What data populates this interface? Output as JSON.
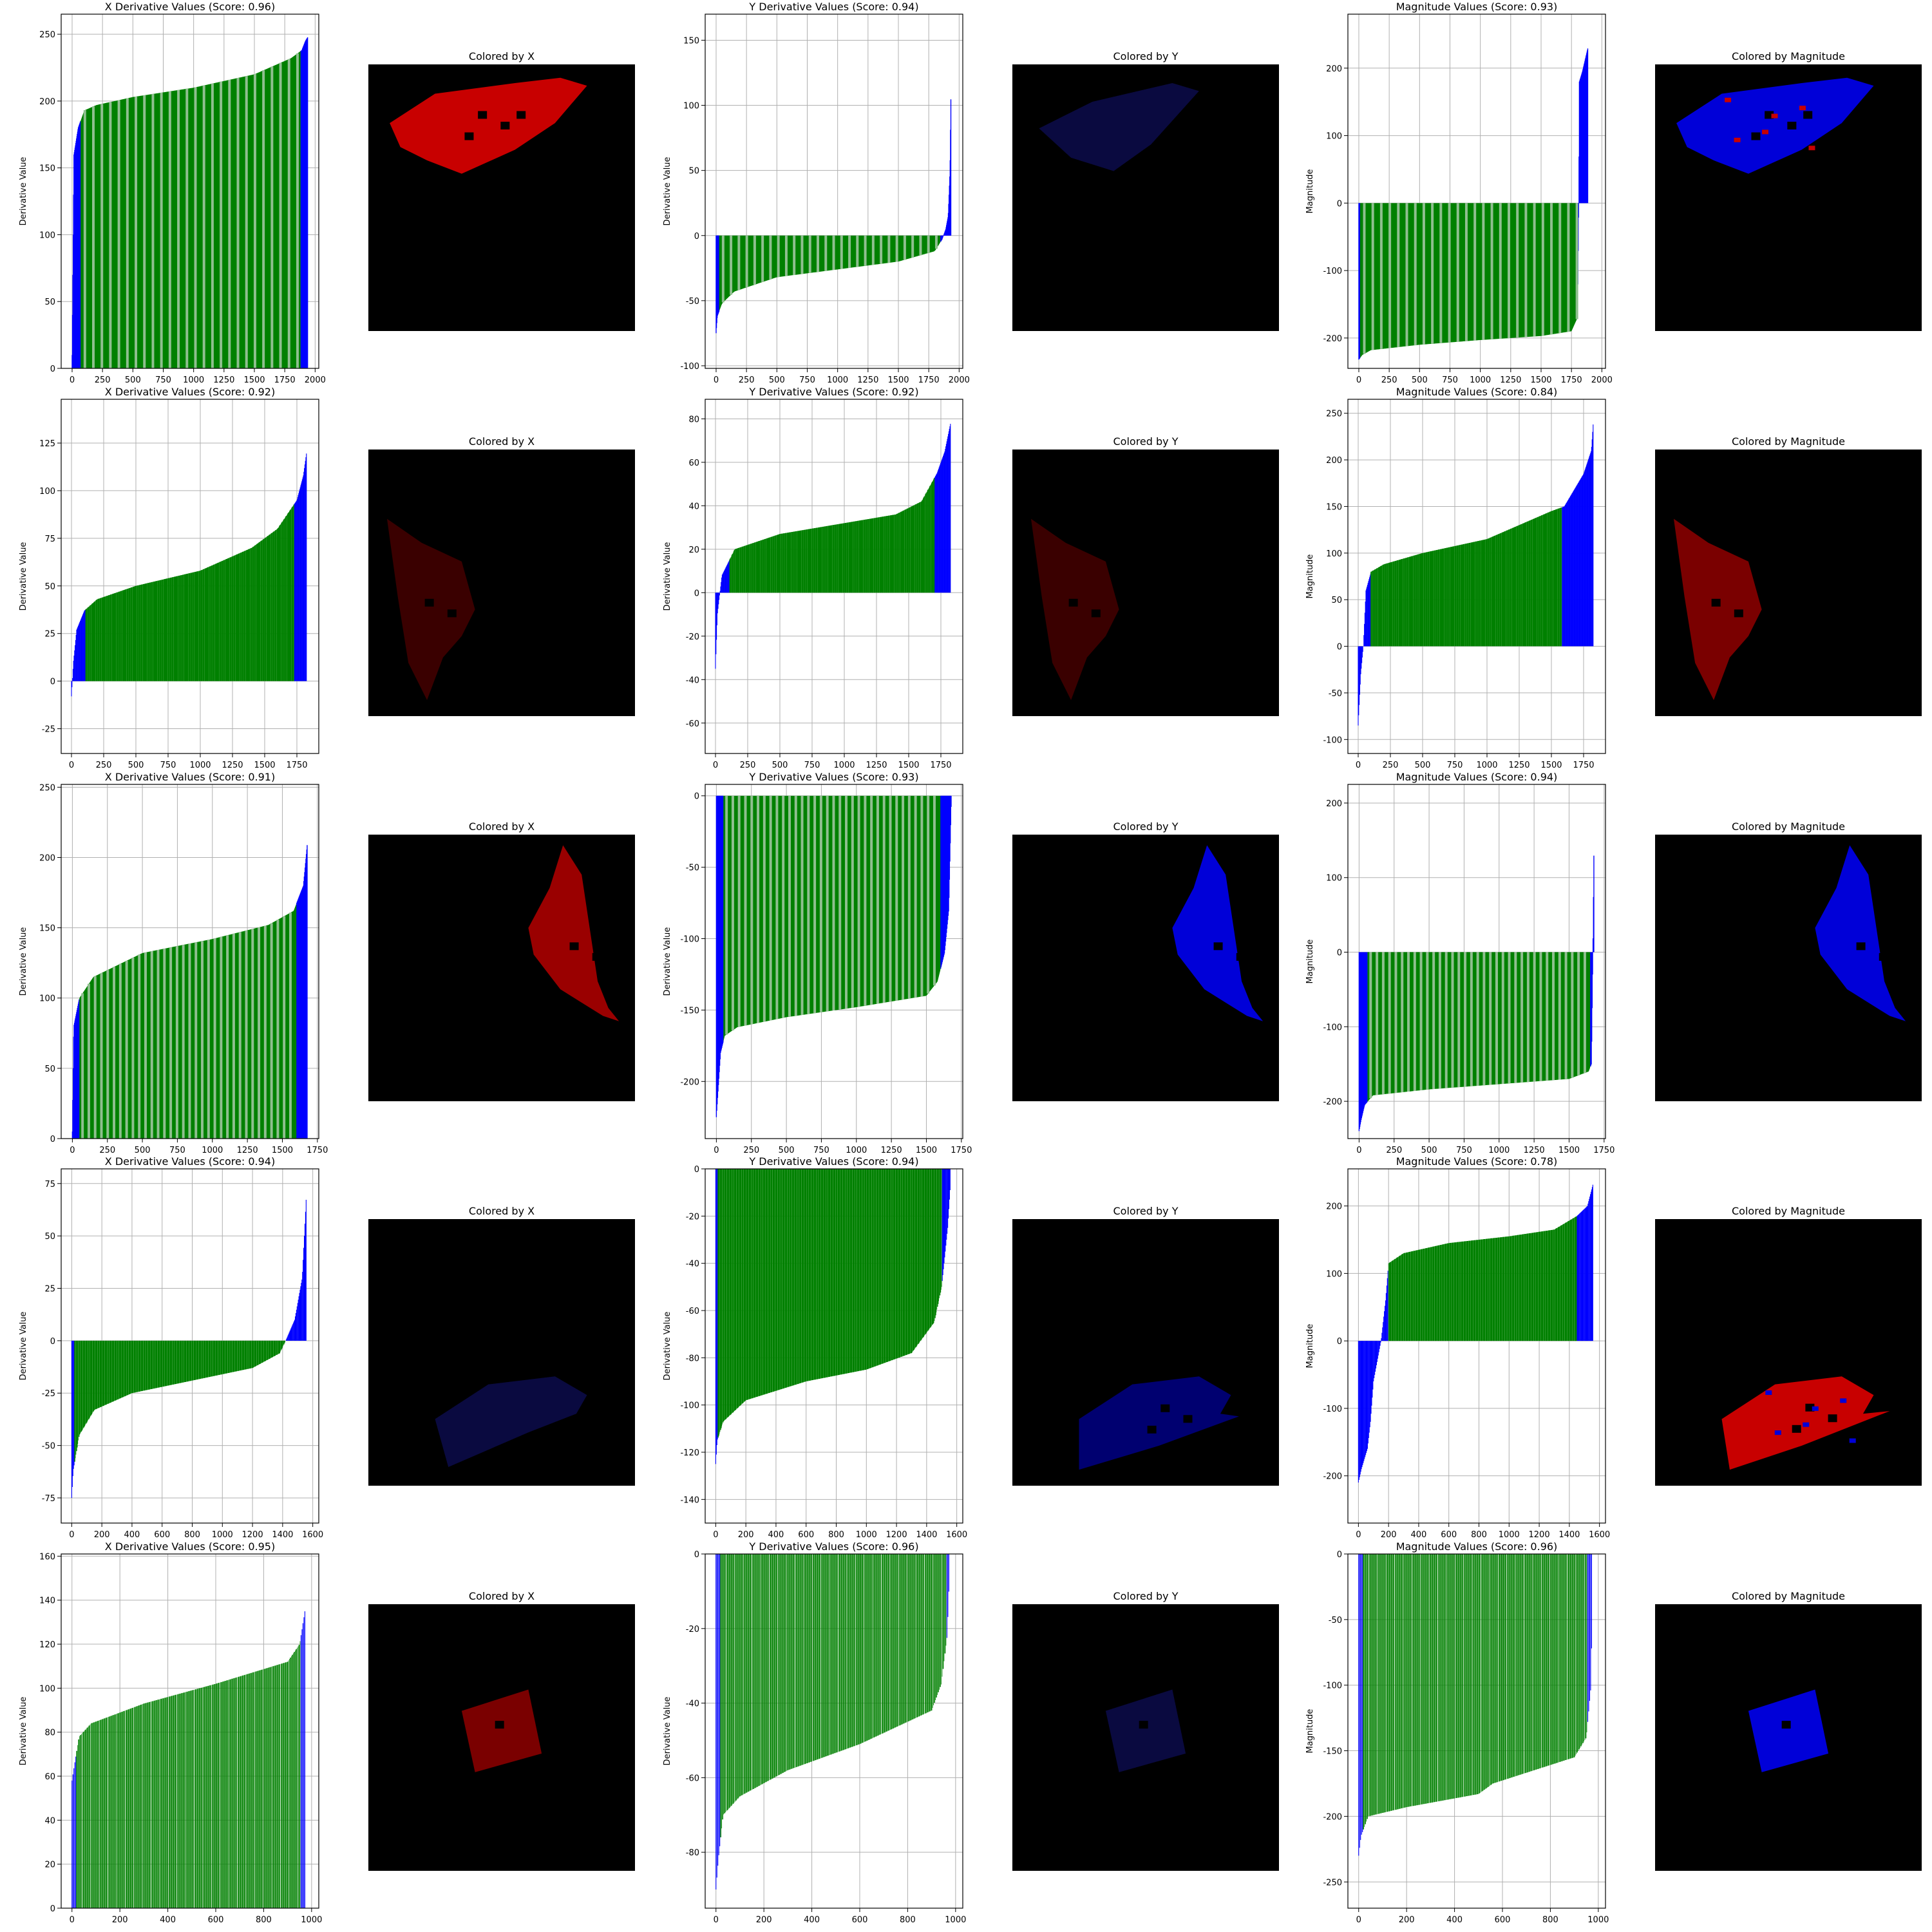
{
  "figure": {
    "colors": {
      "core": "#008000",
      "tail": "#0000ff",
      "axis": "#000000",
      "grid": "#b0b0b0",
      "map_bg": "#000000"
    },
    "image_title_x": "Colored by X",
    "image_title_y": "Colored by Y",
    "image_title_magnitude": "Colored by Magnitude"
  },
  "chart_data": [
    {
      "type": "bar",
      "row": 1,
      "title": "X Derivative Values (Score: 0.96)",
      "xlabel": "",
      "ylabel": "Derivative Value",
      "n": 1940,
      "xlim": [
        -90,
        2030
      ],
      "ylim": [
        0,
        265
      ],
      "xticks": [
        0,
        250,
        500,
        750,
        1000,
        1250,
        1500,
        1750,
        2000
      ],
      "yticks": [
        0,
        50,
        100,
        150,
        200,
        250
      ],
      "curve": [
        [
          0,
          10
        ],
        [
          15,
          160
        ],
        [
          50,
          180
        ],
        [
          100,
          193
        ],
        [
          200,
          197
        ],
        [
          500,
          203
        ],
        [
          1000,
          210
        ],
        [
          1500,
          220
        ],
        [
          1800,
          232
        ],
        [
          1890,
          238
        ],
        [
          1920,
          245
        ],
        [
          1940,
          248
        ]
      ],
      "core_range": [
        70,
        1880
      ],
      "mode": "dense",
      "bar_step": 70
    },
    {
      "type": "bar",
      "row": 1,
      "title": "Y Derivative Values (Score: 0.94)",
      "xlabel": "",
      "ylabel": "Derivative Value",
      "n": 1935,
      "xlim": [
        -90,
        2030
      ],
      "ylim": [
        -102,
        170
      ],
      "xticks": [
        0,
        250,
        500,
        750,
        1000,
        1250,
        1500,
        1750,
        2000
      ],
      "yticks": [
        -100,
        -50,
        0,
        50,
        100,
        150
      ],
      "curve": [
        [
          0,
          -75
        ],
        [
          10,
          -62
        ],
        [
          50,
          -52
        ],
        [
          150,
          -43
        ],
        [
          500,
          -32
        ],
        [
          1000,
          -26
        ],
        [
          1500,
          -20
        ],
        [
          1800,
          -12
        ],
        [
          1860,
          -3
        ],
        [
          1890,
          5
        ],
        [
          1910,
          15
        ],
        [
          1925,
          50
        ],
        [
          1935,
          128
        ]
      ],
      "core_range": [
        25,
        1845
      ],
      "mode": "dense",
      "bar_step": 65
    },
    {
      "type": "bar",
      "row": 1,
      "title": "Magnitude Values (Score: 0.93)",
      "xlabel": "",
      "ylabel": "Magnitude",
      "n": 1885,
      "xlim": [
        -90,
        2030
      ],
      "ylim": [
        -245,
        280
      ],
      "xticks": [
        0,
        250,
        500,
        750,
        1000,
        1250,
        1500,
        1750,
        2000
      ],
      "yticks": [
        -200,
        -100,
        0,
        100,
        200
      ],
      "curve": [
        [
          0,
          -232
        ],
        [
          30,
          -225
        ],
        [
          100,
          -218
        ],
        [
          500,
          -210
        ],
        [
          1000,
          -203
        ],
        [
          1500,
          -197
        ],
        [
          1750,
          -190
        ],
        [
          1800,
          -170
        ],
        [
          1810,
          -5
        ],
        [
          1815,
          180
        ],
        [
          1840,
          195
        ],
        [
          1885,
          230
        ]
      ],
      "core_range": [
        10,
        1800
      ],
      "mode": "dense",
      "bar_step": 70
    },
    {
      "type": "bar",
      "row": 2,
      "title": "X Derivative Values (Score: 0.92)",
      "xlabel": "",
      "ylabel": "Derivative Value",
      "n": 1825,
      "xlim": [
        -80,
        1920
      ],
      "ylim": [
        -38,
        148
      ],
      "xticks": [
        0,
        250,
        500,
        750,
        1000,
        1250,
        1500,
        1750
      ],
      "yticks": [
        -25,
        0,
        25,
        50,
        75,
        100,
        125
      ],
      "curve": [
        [
          0,
          -8
        ],
        [
          15,
          10
        ],
        [
          40,
          27
        ],
        [
          100,
          37
        ],
        [
          200,
          43
        ],
        [
          500,
          50
        ],
        [
          1000,
          58
        ],
        [
          1400,
          70
        ],
        [
          1600,
          80
        ],
        [
          1750,
          95
        ],
        [
          1800,
          108
        ],
        [
          1825,
          120
        ]
      ],
      "core_range": [
        110,
        1730
      ],
      "mode": "sparse",
      "bar_step": 16
    },
    {
      "type": "bar",
      "row": 2,
      "title": "Y Derivative Values (Score: 0.92)",
      "xlabel": "",
      "ylabel": "Derivative Value",
      "n": 1825,
      "xlim": [
        -80,
        1920
      ],
      "ylim": [
        -74,
        89
      ],
      "xticks": [
        0,
        250,
        500,
        750,
        1000,
        1250,
        1500,
        1750
      ],
      "yticks": [
        -60,
        -40,
        -20,
        0,
        20,
        40,
        60,
        80
      ],
      "curve": [
        [
          0,
          -35
        ],
        [
          15,
          -10
        ],
        [
          50,
          8
        ],
        [
          150,
          20
        ],
        [
          500,
          27
        ],
        [
          1000,
          32
        ],
        [
          1400,
          36
        ],
        [
          1600,
          42
        ],
        [
          1720,
          55
        ],
        [
          1780,
          65
        ],
        [
          1825,
          78
        ]
      ],
      "core_range": [
        110,
        1700
      ],
      "mode": "sparse",
      "bar_step": 16
    },
    {
      "type": "bar",
      "row": 2,
      "title": "Magnitude Values (Score: 0.84)",
      "xlabel": "",
      "ylabel": "Magnitude",
      "n": 1825,
      "xlim": [
        -80,
        1920
      ],
      "ylim": [
        -115,
        265
      ],
      "xticks": [
        0,
        250,
        500,
        750,
        1000,
        1250,
        1500,
        1750
      ],
      "yticks": [
        -100,
        -50,
        0,
        50,
        100,
        150,
        200,
        250
      ],
      "curve": [
        [
          0,
          -85
        ],
        [
          20,
          -30
        ],
        [
          40,
          0
        ],
        [
          60,
          60
        ],
        [
          100,
          80
        ],
        [
          200,
          88
        ],
        [
          500,
          100
        ],
        [
          1000,
          115
        ],
        [
          1500,
          145
        ],
        [
          1600,
          150
        ],
        [
          1750,
          185
        ],
        [
          1810,
          210
        ],
        [
          1825,
          240
        ]
      ],
      "core_range": [
        100,
        1580
      ],
      "mode": "sparse",
      "bar_step": 16
    },
    {
      "type": "bar",
      "row": 3,
      "title": "X Derivative Values (Score: 0.91)",
      "xlabel": "",
      "ylabel": "Derivative Value",
      "n": 1680,
      "xlim": [
        -80,
        1760
      ],
      "ylim": [
        0,
        252
      ],
      "xticks": [
        0,
        250,
        500,
        750,
        1000,
        1250,
        1500,
        1750
      ],
      "yticks": [
        0,
        50,
        100,
        150,
        200,
        250
      ],
      "curve": [
        [
          0,
          5
        ],
        [
          10,
          80
        ],
        [
          50,
          100
        ],
        [
          150,
          115
        ],
        [
          500,
          132
        ],
        [
          1000,
          142
        ],
        [
          1400,
          152
        ],
        [
          1580,
          162
        ],
        [
          1650,
          180
        ],
        [
          1680,
          212
        ]
      ],
      "core_range": [
        50,
        1600
      ],
      "mode": "dense",
      "bar_step": 45
    },
    {
      "type": "bar",
      "row": 3,
      "title": "Y Derivative Values (Score: 0.93)",
      "xlabel": "",
      "ylabel": "Derivative Value",
      "n": 1680,
      "xlim": [
        -80,
        1760
      ],
      "ylim": [
        -240,
        8
      ],
      "xticks": [
        0,
        250,
        500,
        750,
        1000,
        1250,
        1500,
        1750
      ],
      "yticks": [
        -200,
        -150,
        -100,
        -50,
        0
      ],
      "curve": [
        [
          0,
          -225
        ],
        [
          10,
          -210
        ],
        [
          30,
          -180
        ],
        [
          60,
          -168
        ],
        [
          150,
          -162
        ],
        [
          500,
          -155
        ],
        [
          1000,
          -148
        ],
        [
          1500,
          -140
        ],
        [
          1580,
          -130
        ],
        [
          1630,
          -110
        ],
        [
          1660,
          -80
        ],
        [
          1680,
          5
        ]
      ],
      "core_range": [
        50,
        1600
      ],
      "mode": "dense",
      "bar_step": 45
    },
    {
      "type": "bar",
      "row": 3,
      "title": "Magnitude Values (Score: 0.94)",
      "xlabel": "",
      "ylabel": "Magnitude",
      "n": 1680,
      "xlim": [
        -80,
        1760
      ],
      "ylim": [
        -250,
        225
      ],
      "xticks": [
        0,
        250,
        500,
        750,
        1000,
        1250,
        1500,
        1750
      ],
      "yticks": [
        -200,
        -100,
        0,
        100,
        200
      ],
      "curve": [
        [
          0,
          -240
        ],
        [
          15,
          -225
        ],
        [
          40,
          -205
        ],
        [
          100,
          -192
        ],
        [
          500,
          -184
        ],
        [
          1000,
          -177
        ],
        [
          1500,
          -170
        ],
        [
          1640,
          -160
        ],
        [
          1660,
          -150
        ],
        [
          1670,
          0
        ],
        [
          1680,
          185
        ]
      ],
      "core_range": [
        60,
        1650
      ],
      "mode": "dense",
      "bar_step": 45
    },
    {
      "type": "bar",
      "row": 4,
      "title": "X Derivative Values (Score: 0.94)",
      "xlabel": "",
      "ylabel": "Derivative Value",
      "n": 1560,
      "xlim": [
        -70,
        1640
      ],
      "ylim": [
        -87,
        82
      ],
      "xticks": [
        0,
        200,
        400,
        600,
        800,
        1000,
        1200,
        1400,
        1600
      ],
      "yticks": [
        -75,
        -50,
        -25,
        0,
        25,
        50,
        75
      ],
      "curve": [
        [
          0,
          -75
        ],
        [
          10,
          -62
        ],
        [
          50,
          -45
        ],
        [
          150,
          -33
        ],
        [
          400,
          -25
        ],
        [
          800,
          -19
        ],
        [
          1200,
          -13
        ],
        [
          1380,
          -6
        ],
        [
          1420,
          0
        ],
        [
          1480,
          10
        ],
        [
          1530,
          30
        ],
        [
          1560,
          73
        ]
      ],
      "core_range": [
        20,
        1420
      ],
      "mode": "sparse",
      "bar_step": 16
    },
    {
      "type": "bar",
      "row": 4,
      "title": "Y Derivative Values (Score: 0.94)",
      "xlabel": "",
      "ylabel": "Derivative Value",
      "n": 1560,
      "xlim": [
        -70,
        1640
      ],
      "ylim": [
        -150,
        0
      ],
      "xticks": [
        0,
        200,
        400,
        600,
        800,
        1000,
        1200,
        1400,
        1600
      ],
      "yticks": [
        -140,
        -120,
        -100,
        -80,
        -60,
        -40,
        -20,
        0
      ],
      "curve": [
        [
          0,
          -125
        ],
        [
          10,
          -115
        ],
        [
          50,
          -107
        ],
        [
          200,
          -98
        ],
        [
          600,
          -90
        ],
        [
          1000,
          -85
        ],
        [
          1300,
          -78
        ],
        [
          1450,
          -65
        ],
        [
          1500,
          -50
        ],
        [
          1540,
          -25
        ],
        [
          1560,
          -5
        ]
      ],
      "core_range": [
        15,
        1500
      ],
      "mode": "sparse",
      "bar_step": 16
    },
    {
      "type": "bar",
      "row": 4,
      "title": "Magnitude Values (Score: 0.78)",
      "xlabel": "",
      "ylabel": "Magnitude",
      "n": 1560,
      "xlim": [
        -70,
        1640
      ],
      "ylim": [
        -270,
        255
      ],
      "xticks": [
        0,
        200,
        400,
        600,
        800,
        1000,
        1200,
        1400,
        1600
      ],
      "yticks": [
        -200,
        -100,
        0,
        100,
        200
      ],
      "curve": [
        [
          0,
          -210
        ],
        [
          20,
          -190
        ],
        [
          60,
          -160
        ],
        [
          80,
          -120
        ],
        [
          100,
          -60
        ],
        [
          150,
          0
        ],
        [
          180,
          60
        ],
        [
          200,
          115
        ],
        [
          300,
          130
        ],
        [
          600,
          145
        ],
        [
          1000,
          155
        ],
        [
          1300,
          165
        ],
        [
          1450,
          185
        ],
        [
          1520,
          200
        ],
        [
          1560,
          235
        ]
      ],
      "core_range": [
        200,
        1450
      ],
      "mode": "sparse",
      "bar_step": 16
    },
    {
      "type": "bar",
      "row": 5,
      "title": "X Derivative Values (Score: 0.95)",
      "xlabel": "",
      "ylabel": "Derivative Value",
      "n": 975,
      "xlim": [
        -45,
        1030
      ],
      "ylim": [
        0,
        161
      ],
      "xticks": [
        0,
        200,
        400,
        600,
        800,
        1000
      ],
      "yticks": [
        0,
        20,
        40,
        60,
        80,
        100,
        120,
        140,
        160
      ],
      "curve": [
        [
          0,
          58
        ],
        [
          10,
          65
        ],
        [
          30,
          78
        ],
        [
          80,
          84
        ],
        [
          300,
          93
        ],
        [
          600,
          102
        ],
        [
          900,
          112
        ],
        [
          950,
          120
        ],
        [
          975,
          137
        ]
      ],
      "core_range": [
        20,
        955
      ],
      "mode": "sparse",
      "bar_step": 9
    },
    {
      "type": "bar",
      "row": 5,
      "title": "Y Derivative Values (Score: 0.96)",
      "xlabel": "",
      "ylabel": "Derivative Value",
      "n": 975,
      "xlim": [
        -45,
        1030
      ],
      "ylim": [
        -95,
        0
      ],
      "xticks": [
        0,
        200,
        400,
        600,
        800,
        1000
      ],
      "yticks": [
        -80,
        -60,
        -40,
        -20,
        0
      ],
      "curve": [
        [
          0,
          -90
        ],
        [
          10,
          -82
        ],
        [
          30,
          -70
        ],
        [
          100,
          -65
        ],
        [
          300,
          -58
        ],
        [
          600,
          -51
        ],
        [
          900,
          -42
        ],
        [
          940,
          -35
        ],
        [
          965,
          -22
        ],
        [
          975,
          -5
        ]
      ],
      "core_range": [
        20,
        960
      ],
      "mode": "sparse",
      "bar_step": 9
    },
    {
      "type": "bar",
      "row": 5,
      "title": "Magnitude Values (Score: 0.96)",
      "xlabel": "",
      "ylabel": "Magnitude",
      "n": 975,
      "xlim": [
        -45,
        1030
      ],
      "ylim": [
        -270,
        0
      ],
      "xticks": [
        0,
        200,
        400,
        600,
        800,
        1000
      ],
      "yticks": [
        -250,
        -200,
        -150,
        -100,
        -50,
        0
      ],
      "curve": [
        [
          0,
          -230
        ],
        [
          10,
          -215
        ],
        [
          40,
          -200
        ],
        [
          200,
          -193
        ],
        [
          500,
          -183
        ],
        [
          560,
          -175
        ],
        [
          900,
          -155
        ],
        [
          950,
          -140
        ],
        [
          970,
          -100
        ],
        [
          975,
          -30
        ]
      ],
      "core_range": [
        20,
        955
      ],
      "mode": "sparse",
      "bar_step": 9
    }
  ]
}
